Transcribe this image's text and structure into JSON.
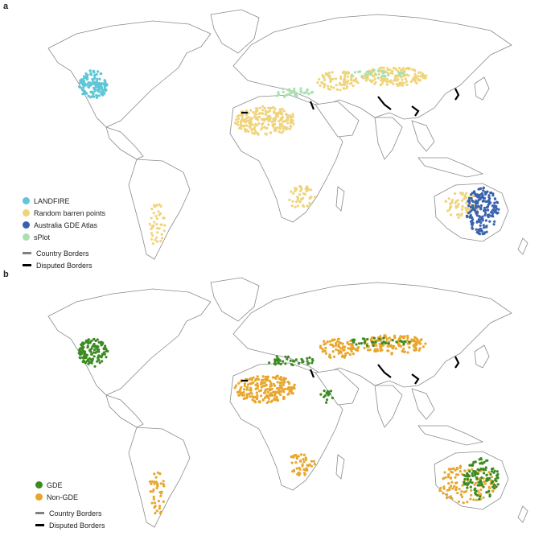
{
  "panels": [
    {
      "letter": "a",
      "legend": [
        {
          "label": "LANDFIRE",
          "color": "#5ec6d6"
        },
        {
          "label": "Random barren points",
          "color": "#f0d47c"
        },
        {
          "label": "Australia GDE Atlas",
          "color": "#3a62ae"
        },
        {
          "label": "sPlot",
          "color": "#a8e0b0"
        }
      ]
    },
    {
      "letter": "b",
      "legend": [
        {
          "label": "GDE",
          "color": "#3c8a22"
        },
        {
          "label": "Non-GDE",
          "color": "#e8a62c"
        }
      ]
    }
  ],
  "borders": {
    "country": {
      "label": "Country Borders",
      "color": "#808080"
    },
    "disputed": {
      "label": "Disputed Borders",
      "color": "#000000"
    }
  }
}
